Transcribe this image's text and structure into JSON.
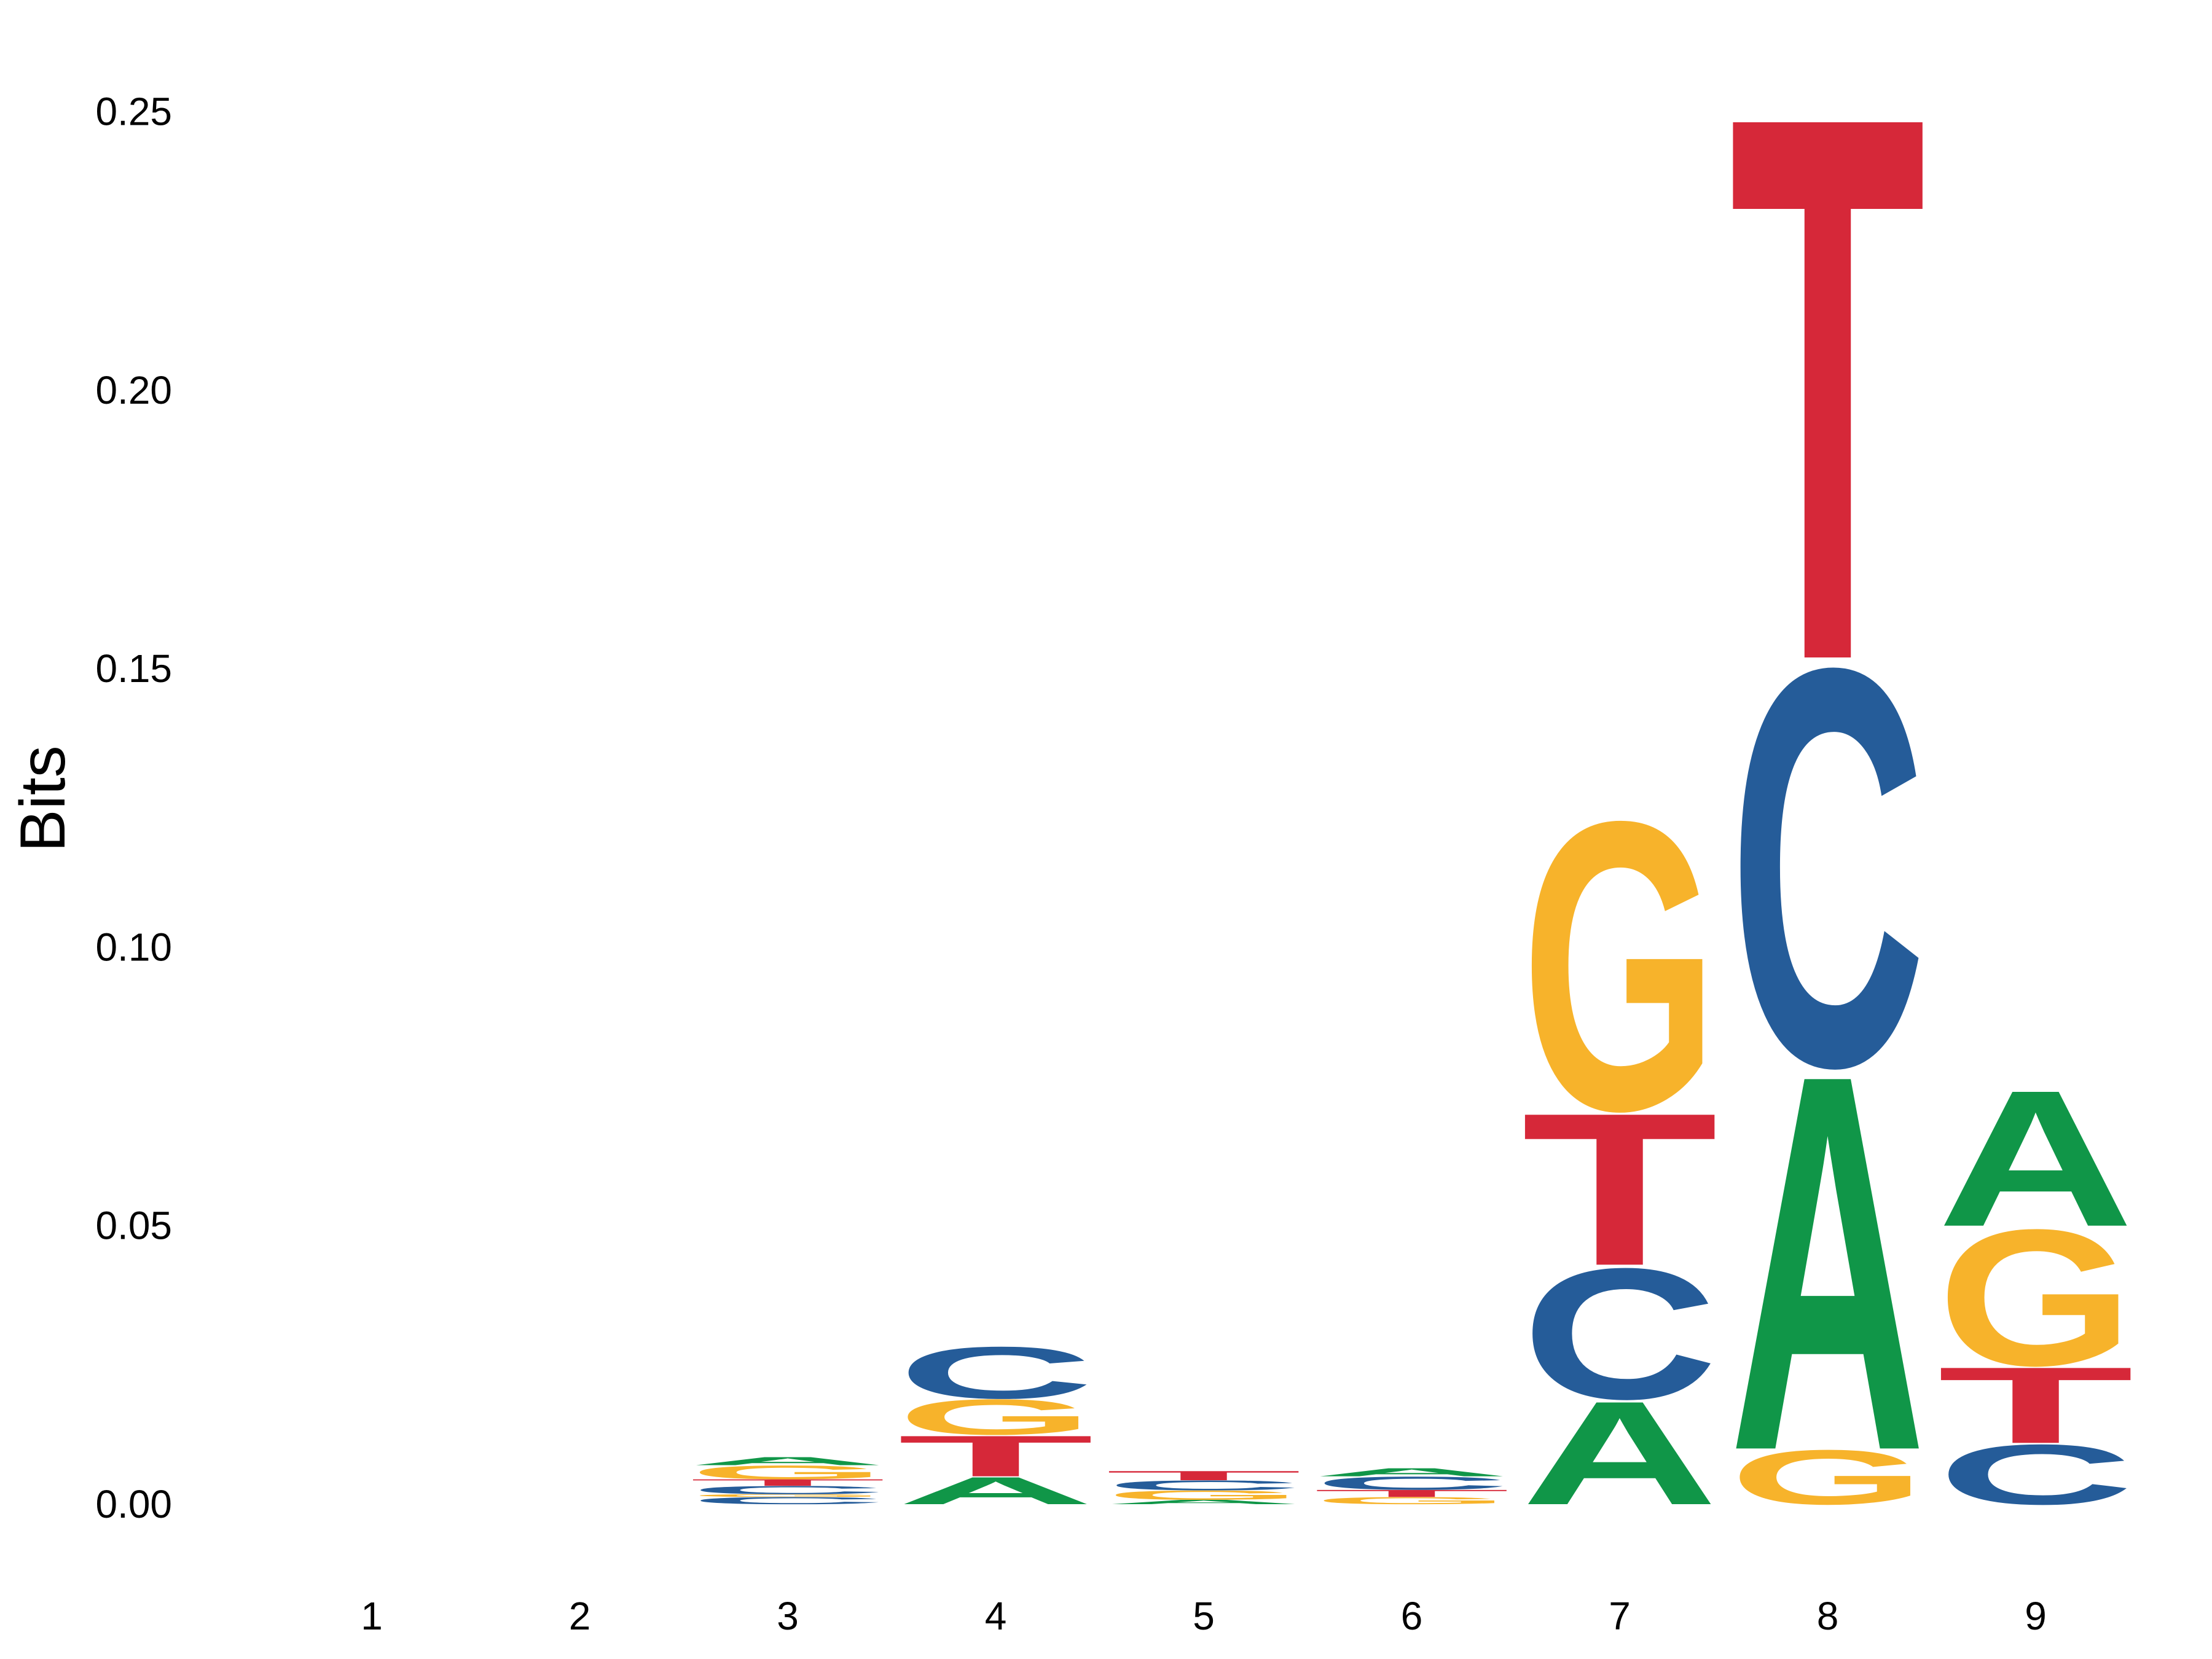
{
  "chart_data": {
    "type": "sequence-logo",
    "ylabel": "Bits",
    "xlabel": "",
    "ylim": [
      0,
      0.26
    ],
    "yticks": [
      "0.00",
      "0.05",
      "0.10",
      "0.15",
      "0.20",
      "0.25"
    ],
    "categories": [
      "1",
      "2",
      "3",
      "4",
      "5",
      "6",
      "7",
      "8",
      "9"
    ],
    "colors": {
      "A": "#109648",
      "C": "#255C99",
      "G": "#F7B32B",
      "T": "#D62839"
    },
    "positions": [
      {
        "position": "1",
        "stack": []
      },
      {
        "position": "2",
        "stack": []
      },
      {
        "position": "3",
        "stack": [
          {
            "letter": "C",
            "bits": 0.0013
          },
          {
            "letter": "G",
            "bits": 0.0005
          },
          {
            "letter": "C",
            "bits": 0.0015
          },
          {
            "letter": "T",
            "bits": 0.0012
          },
          {
            "letter": "G",
            "bits": 0.0025
          },
          {
            "letter": "A",
            "bits": 0.0015
          }
        ]
      },
      {
        "position": "4",
        "stack": [
          {
            "letter": "A",
            "bits": 0.005
          },
          {
            "letter": "T",
            "bits": 0.0075
          },
          {
            "letter": "G",
            "bits": 0.0065
          },
          {
            "letter": "C",
            "bits": 0.0095
          }
        ]
      },
      {
        "position": "5",
        "stack": [
          {
            "letter": "A",
            "bits": 0.0008
          },
          {
            "letter": "G",
            "bits": 0.0017
          },
          {
            "letter": "C",
            "bits": 0.0018
          },
          {
            "letter": "T",
            "bits": 0.0017
          }
        ]
      },
      {
        "position": "6",
        "stack": [
          {
            "letter": "G",
            "bits": 0.0013
          },
          {
            "letter": "T",
            "bits": 0.0013
          },
          {
            "letter": "C",
            "bits": 0.0024
          },
          {
            "letter": "A",
            "bits": 0.0015
          }
        ]
      },
      {
        "position": "7",
        "stack": [
          {
            "letter": "A",
            "bits": 0.019
          },
          {
            "letter": "C",
            "bits": 0.024
          },
          {
            "letter": "T",
            "bits": 0.028
          },
          {
            "letter": "G",
            "bits": 0.053
          }
        ]
      },
      {
        "position": "8",
        "stack": [
          {
            "letter": "G",
            "bits": 0.01
          },
          {
            "letter": "A",
            "bits": 0.069
          },
          {
            "letter": "C",
            "bits": 0.073
          },
          {
            "letter": "T",
            "bits": 0.1
          }
        ]
      },
      {
        "position": "9",
        "stack": [
          {
            "letter": "C",
            "bits": 0.011
          },
          {
            "letter": "T",
            "bits": 0.014
          },
          {
            "letter": "G",
            "bits": 0.025
          },
          {
            "letter": "A",
            "bits": 0.025
          }
        ]
      }
    ]
  }
}
